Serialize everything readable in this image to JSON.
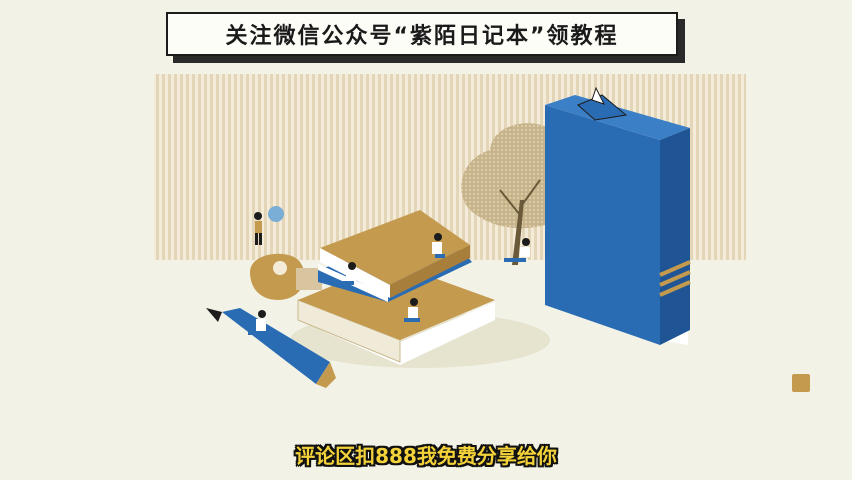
{
  "banner": {
    "text": "关注微信公众号“紫陌日记本”领教程"
  },
  "subtitle": {
    "text": "评论区扣888我免费分享给你"
  },
  "colors": {
    "background": "#f2f3e6",
    "stripes": "#e7dcc3",
    "gold": "#c49a4e",
    "blue": "#2a6cb4",
    "ink": "#1c1c1c",
    "subtitle": "#f3d23a"
  },
  "icons": [
    "book-stack-illustration",
    "tall-book-illustration",
    "pencil-illustration",
    "tree-illustration",
    "lightbulb-illustration",
    "paper-boat-illustration"
  ]
}
